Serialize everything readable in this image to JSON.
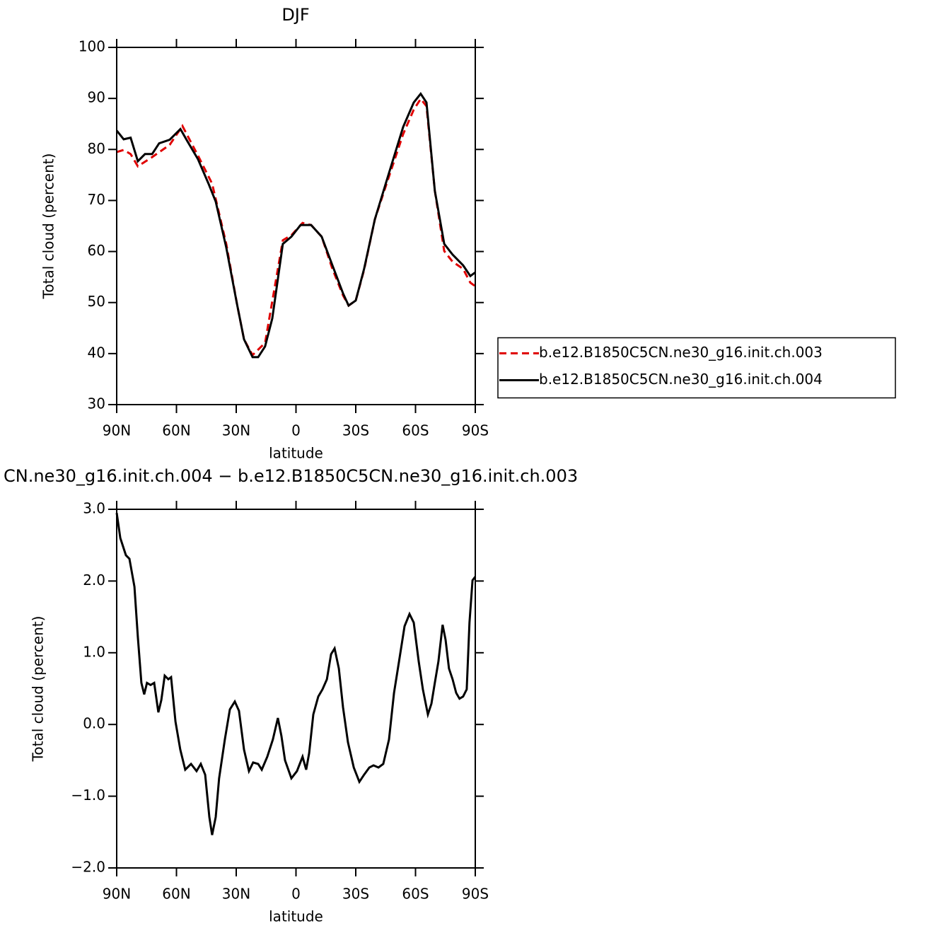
{
  "chart_data": [
    {
      "type": "line",
      "title": "DJF",
      "xlabel": "latitude",
      "ylabel": "Total cloud (percent)",
      "xlim": [
        90,
        -90
      ],
      "xticks": [
        {
          "value": 90,
          "label": "90N"
        },
        {
          "value": 60,
          "label": "60N"
        },
        {
          "value": 30,
          "label": "30N"
        },
        0,
        {
          "value": -30,
          "label": "30S"
        },
        {
          "value": -60,
          "label": "60S"
        },
        {
          "value": -90,
          "label": "90S"
        }
      ],
      "ylim": [
        30,
        100
      ],
      "yticks": [
        30,
        40,
        50,
        60,
        70,
        80,
        90,
        100
      ],
      "legend": "right",
      "series": [
        {
          "name": "b.e12.B1850C5CN.ne30_g16.init.ch.003",
          "color": "#e00000",
          "line_style": "dashed",
          "x": [
            90,
            86.5,
            83,
            79.4,
            72.2,
            63.4,
            57,
            49.2,
            42.1,
            35,
            29.6,
            26.1,
            21.8,
            15.5,
            6.6,
            2.3,
            -3.3,
            -7.6,
            -12.9,
            -18.3,
            -23.6,
            -26.4,
            -30,
            -34.2,
            -39.6,
            -46.7,
            -53.8,
            -59.1,
            -62.6,
            -65.5,
            -69.7,
            -74.4,
            -78.6,
            -83.9,
            -87.5,
            -90
          ],
          "values": [
            79.5,
            79.9,
            79.1,
            76.7,
            78.5,
            80.9,
            84.6,
            78.8,
            73.3,
            61.5,
            49.7,
            42.8,
            39.7,
            42.1,
            62.2,
            63.2,
            65.6,
            65.2,
            62.9,
            56.6,
            51.4,
            49.4,
            50.4,
            56.4,
            66.3,
            74.7,
            83,
            87.8,
            89.9,
            88.5,
            71.9,
            60.1,
            58,
            56.6,
            53.9,
            53.2
          ]
        },
        {
          "name": "b.e12.B1850C5CN.ne30_g16.init.ch.004",
          "color": "#000000",
          "line_style": "solid",
          "x": [
            90,
            86.5,
            83,
            79.4,
            75.8,
            72.2,
            68.7,
            63.4,
            58,
            54.5,
            49.2,
            43.9,
            40.3,
            35,
            29.6,
            26.1,
            21.8,
            19,
            15.5,
            11.9,
            6.6,
            2.3,
            -2.3,
            -7.6,
            -12.9,
            -18.3,
            -23.6,
            -26.4,
            -30,
            -34.2,
            -39.6,
            -46.7,
            -53.8,
            -59.1,
            -62.6,
            -65.5,
            -69.7,
            -74.4,
            -78.6,
            -83.9,
            -87.5,
            -90
          ],
          "values": [
            83.7,
            82,
            82.3,
            77.7,
            79.1,
            79.1,
            81.2,
            81.9,
            84,
            81.6,
            78.1,
            73.3,
            69.8,
            60.8,
            49.7,
            42.8,
            39.3,
            39.3,
            41.4,
            46.9,
            61.5,
            62.9,
            65.2,
            65.2,
            62.9,
            57.3,
            51.8,
            49.4,
            50.4,
            56.6,
            66.3,
            75.4,
            84.4,
            89.2,
            90.9,
            89.2,
            71.9,
            61.5,
            59.4,
            57.3,
            55.2,
            55.9
          ]
        }
      ]
    },
    {
      "type": "line",
      "title": "CN.ne30_g16.init.ch.004 − b.e12.B1850C5CN.ne30_g16.init.ch.003",
      "xlabel": "latitude",
      "ylabel": "Total cloud (percent)",
      "xlim": [
        90,
        -90
      ],
      "xticks": [
        {
          "value": 90,
          "label": "90N"
        },
        {
          "value": 60,
          "label": "60N"
        },
        {
          "value": 30,
          "label": "30N"
        },
        0,
        {
          "value": -30,
          "label": "30S"
        },
        {
          "value": -60,
          "label": "60S"
        },
        {
          "value": -90,
          "label": "90S"
        }
      ],
      "ylim": [
        -2,
        3
      ],
      "yticks": [
        {
          "value": -2,
          "label": "−2.0"
        },
        {
          "value": -1,
          "label": "−1.0"
        },
        {
          "value": 0,
          "label": "0.0"
        },
        {
          "value": 1,
          "label": "1.0"
        },
        {
          "value": 2,
          "label": "2.0"
        },
        {
          "value": 3,
          "label": "3.0"
        }
      ],
      "series": [
        {
          "color": "#000000",
          "line_style": "solid",
          "x": [
            90,
            88.2,
            85.4,
            83.6,
            81.1,
            79.4,
            77.6,
            76.2,
            74.8,
            73,
            71.2,
            69.1,
            67.6,
            65.9,
            64.1,
            62.7,
            60.5,
            58.1,
            55.6,
            52.7,
            49.9,
            47.8,
            45.6,
            43.5,
            42.1,
            40.3,
            38.6,
            35.7,
            33.2,
            30.7,
            28.6,
            26.1,
            23.6,
            21.5,
            19,
            17.2,
            14.4,
            11.6,
            9.1,
            7.3,
            5.5,
            2.3,
            -0.5,
            -3.3,
            -5.1,
            -6.6,
            -8.7,
            -11.2,
            -13.3,
            -15.5,
            -17.6,
            -19.4,
            -21.5,
            -23.6,
            -26.1,
            -29,
            -31.8,
            -34.2,
            -36.8,
            -38.9,
            -41.4,
            -43.8,
            -46.7,
            -49.2,
            -52,
            -54.5,
            -57,
            -59.1,
            -61.6,
            -63.7,
            -66.2,
            -68,
            -69.7,
            -71.5,
            -73.6,
            -75.1,
            -76.8,
            -78.6,
            -80.4,
            -82.1,
            -83.9,
            -85.7,
            -87.1,
            -88.6,
            -90
          ],
          "values": [
            2.95,
            2.6,
            2.36,
            2.31,
            1.92,
            1.22,
            0.58,
            0.42,
            0.58,
            0.55,
            0.58,
            0.17,
            0.34,
            0.68,
            0.63,
            0.66,
            0.04,
            -0.35,
            -0.63,
            -0.55,
            -0.65,
            -0.55,
            -0.7,
            -1.29,
            -1.54,
            -1.29,
            -0.75,
            -0.21,
            0.21,
            0.32,
            0.19,
            -0.35,
            -0.65,
            -0.53,
            -0.55,
            -0.63,
            -0.45,
            -0.21,
            0.09,
            -0.16,
            -0.5,
            -0.75,
            -0.65,
            -0.45,
            -0.63,
            -0.4,
            0.14,
            0.39,
            0.49,
            0.63,
            0.98,
            1.06,
            0.78,
            0.24,
            -0.25,
            -0.6,
            -0.8,
            -0.7,
            -0.6,
            -0.57,
            -0.6,
            -0.55,
            -0.21,
            0.44,
            0.93,
            1.37,
            1.54,
            1.42,
            0.88,
            0.49,
            0.14,
            0.29,
            0.58,
            0.88,
            1.39,
            1.18,
            0.78,
            0.63,
            0.44,
            0.36,
            0.39,
            0.49,
            1.42,
            2.01,
            2.06
          ]
        }
      ]
    }
  ]
}
